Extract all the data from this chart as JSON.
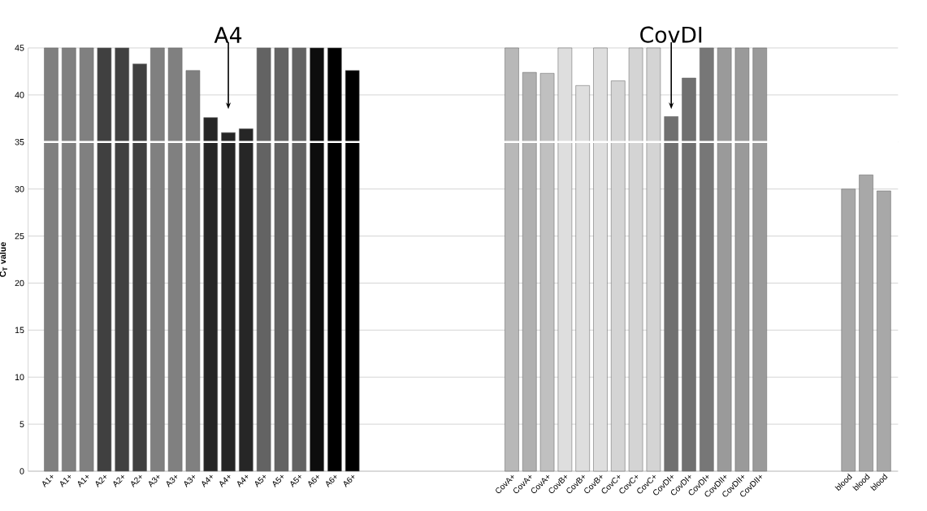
{
  "chart_data": {
    "type": "bar",
    "ylabel": "C$_{T}$ value",
    "categories": [
      "A1+",
      "A1+",
      "A1+",
      "A2+",
      "A2+",
      "A2+",
      "A3+",
      "A3+",
      "A3+",
      "A4+",
      "A4+",
      "A4+",
      "A5+",
      "A5+",
      "A5+",
      "A6+",
      "A6+",
      "A6+",
      null,
      null,
      null,
      null,
      null,
      null,
      null,
      null,
      "CovA+",
      "CovA+",
      "CovA+",
      "CovB+",
      "CovB+",
      "CovB+",
      "CovC+",
      "CovC+",
      "CovC+",
      "CovDI+",
      "CovDI+",
      "CovDI+",
      "CovDII+",
      "CovDII+",
      "CovDII+",
      null,
      null,
      null,
      null,
      "blood",
      "blood",
      "blood"
    ],
    "values": [
      45,
      45,
      45,
      45,
      45,
      43.3,
      45,
      45,
      42.6,
      37.6,
      36.0,
      36.4,
      45,
      45,
      45,
      45,
      45,
      42.6,
      null,
      null,
      null,
      null,
      null,
      null,
      null,
      null,
      45,
      42.4,
      42.3,
      45,
      41.0,
      45,
      41.5,
      45,
      45,
      37.7,
      41.8,
      45,
      45,
      45,
      45,
      null,
      null,
      null,
      null,
      30.0,
      31.5,
      29.8
    ],
    "colors": [
      "#808080",
      "#808080",
      "#808080",
      "#404040",
      "#404040",
      "#404040",
      "#808080",
      "#808080",
      "#808080",
      "#262626",
      "#262626",
      "#262626",
      "#636363",
      "#636363",
      "#636363",
      "#0d0d0d",
      "#000000",
      "#000000",
      null,
      null,
      null,
      null,
      null,
      null,
      null,
      null,
      "#b8b8b8",
      "#b0b0b0",
      "#c0c0c0",
      "#dedede",
      "#dedede",
      "#dedede",
      "#d4d4d4",
      "#d4d4d4",
      "#d4d4d4",
      "#707070",
      "#707070",
      "#777777",
      "#9a9a9a",
      "#9a9a9a",
      "#9a9a9a",
      null,
      null,
      null,
      null,
      "#a8a8a8",
      "#a8a8a8",
      "#a8a8a8"
    ],
    "ylim": [
      0,
      45
    ],
    "yticks": [
      0,
      5,
      10,
      15,
      20,
      25,
      30,
      35,
      40,
      45
    ],
    "grid": "y",
    "ref_lines": [
      {
        "axis": "y",
        "value": 35,
        "color": "#ffffff"
      }
    ],
    "annotations": [
      "A4",
      "CovDI"
    ]
  }
}
